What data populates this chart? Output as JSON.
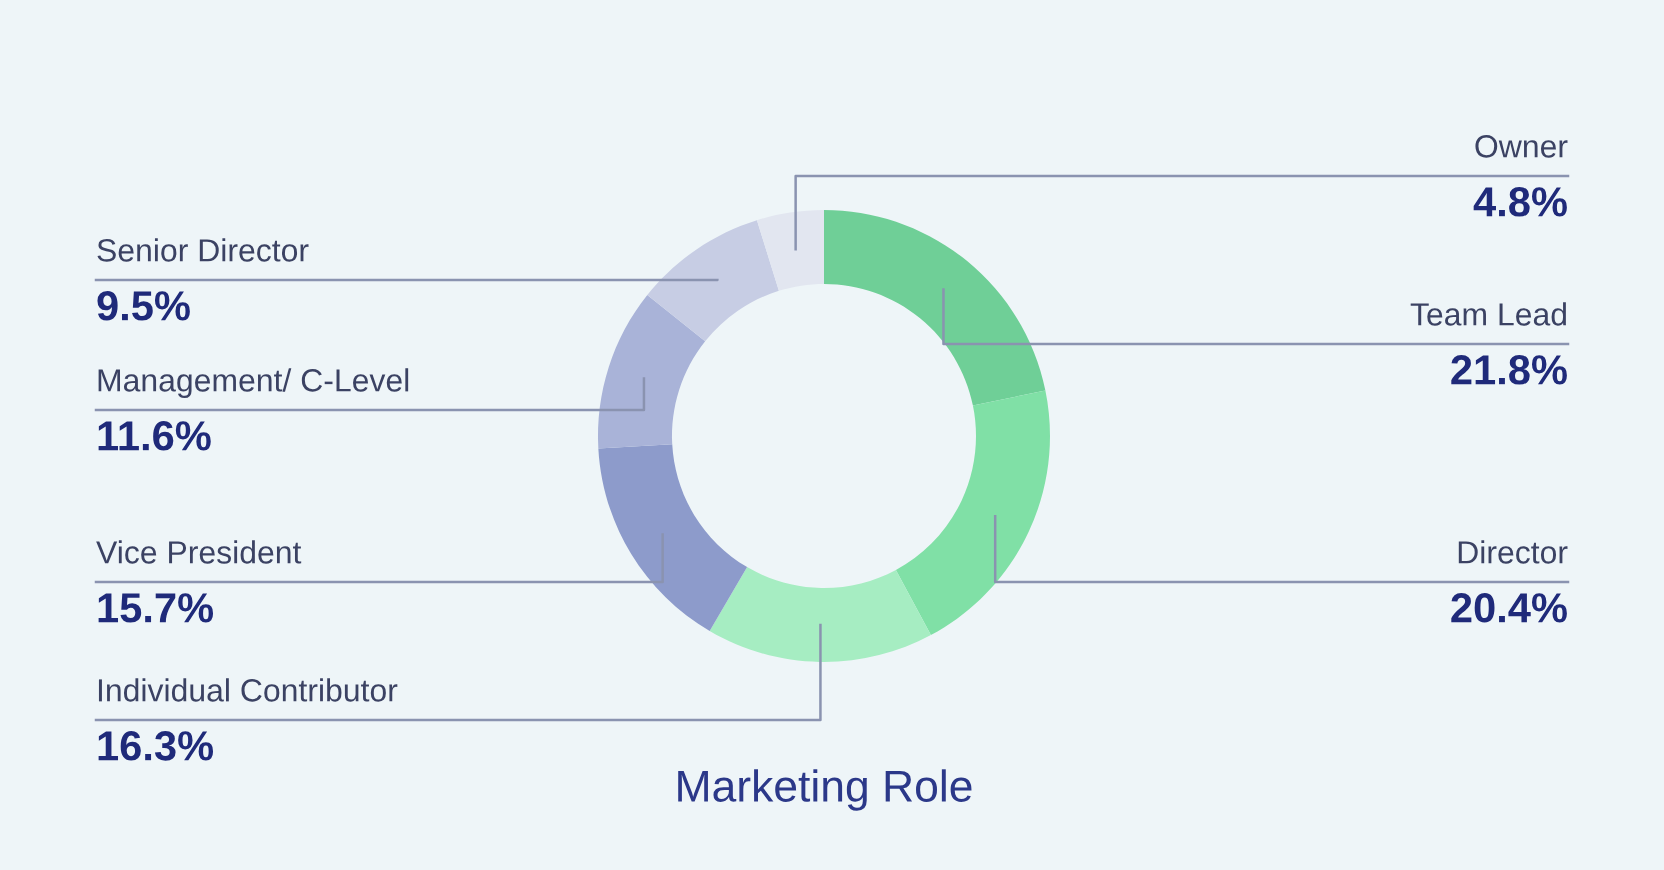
{
  "chart_data": {
    "type": "donut",
    "title": "Marketing Role",
    "categories": [
      "Team Lead",
      "Director",
      "Individual Contributor",
      "Vice President",
      "Management/ C-Level",
      "Senior Director",
      "Owner"
    ],
    "values": [
      21.8,
      20.4,
      16.3,
      15.7,
      11.6,
      9.5,
      4.8
    ],
    "value_labels": [
      "21.8%",
      "20.4%",
      "16.3%",
      "15.7%",
      "11.6%",
      "9.5%",
      "4.8%"
    ],
    "colors": [
      "#6fcf97",
      "#80e0a6",
      "#a6edc2",
      "#8d9bcb",
      "#a9b3d8",
      "#c7cde4",
      "#e2e6f0"
    ]
  }
}
